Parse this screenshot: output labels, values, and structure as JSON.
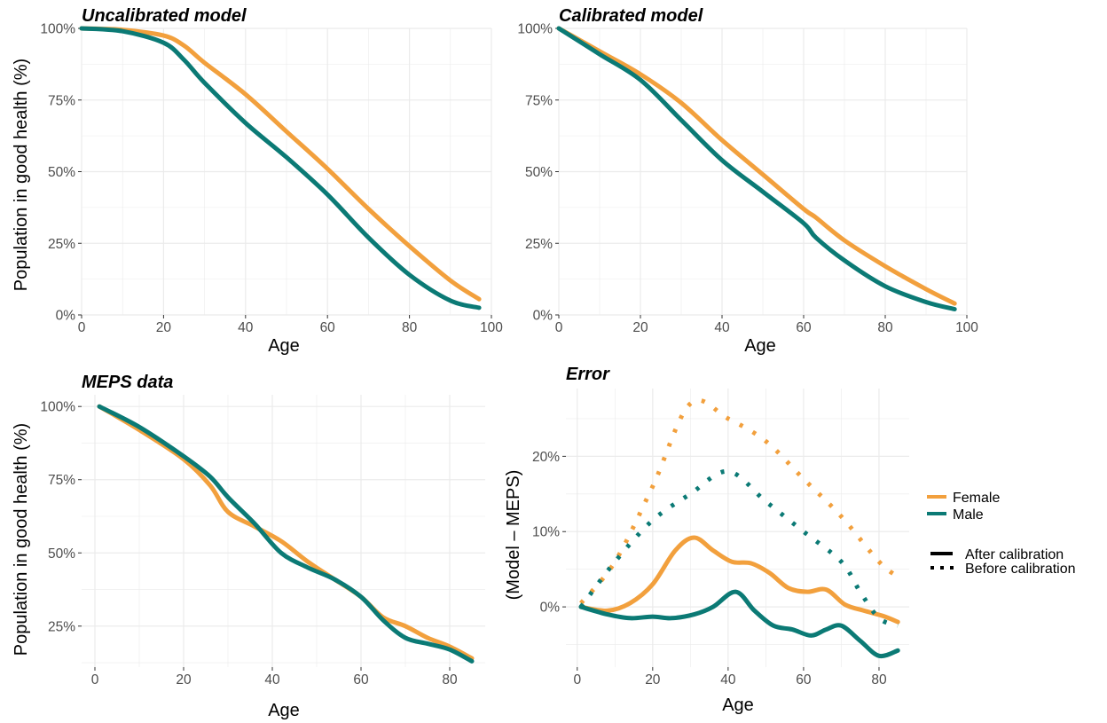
{
  "colors": {
    "female": "#f2a03d",
    "male": "#0b7a75",
    "grid": "#ebebeb",
    "tick": "#4d4d4d"
  },
  "legend": {
    "sex": [
      {
        "label": "Female",
        "color": "#f2a03d"
      },
      {
        "label": "Male",
        "color": "#0b7a75"
      }
    ],
    "linetype": [
      {
        "label": "After calibration",
        "style": "solid"
      },
      {
        "label": "Before calibration",
        "style": "dotted"
      }
    ]
  },
  "chart_data": [
    {
      "type": "line",
      "title": "Uncalibrated model",
      "xlabel": "Age",
      "ylabel": "Population in good health (%)",
      "xlim": [
        0,
        100
      ],
      "ylim": [
        0,
        100
      ],
      "xticks": [
        "0",
        "20",
        "40",
        "60",
        "80",
        "100"
      ],
      "yticks": [
        "0%",
        "25%",
        "50%",
        "75%",
        "100%"
      ],
      "series": [
        {
          "name": "Female",
          "color": "#f2a03d",
          "x": [
            0,
            10,
            20,
            25,
            30,
            40,
            50,
            60,
            70,
            80,
            90,
            97
          ],
          "y": [
            100,
            99.5,
            97.5,
            94,
            88,
            77,
            64,
            51,
            37,
            24,
            12,
            5.5
          ]
        },
        {
          "name": "Male",
          "color": "#0b7a75",
          "x": [
            0,
            10,
            20,
            25,
            30,
            40,
            50,
            60,
            70,
            80,
            90,
            97
          ],
          "y": [
            100,
            99,
            95,
            89,
            81,
            67,
            55,
            42,
            27,
            14,
            5,
            2.5
          ]
        }
      ]
    },
    {
      "type": "line",
      "title": "Calibrated model",
      "xlabel": "Age",
      "ylabel": "",
      "xlim": [
        0,
        100
      ],
      "ylim": [
        0,
        100
      ],
      "xticks": [
        "0",
        "20",
        "40",
        "60",
        "80",
        "100"
      ],
      "yticks": [
        "0%",
        "25%",
        "50%",
        "75%",
        "100%"
      ],
      "series": [
        {
          "name": "Female",
          "color": "#f2a03d",
          "x": [
            0,
            10,
            20,
            30,
            40,
            50,
            60,
            63,
            70,
            80,
            90,
            97
          ],
          "y": [
            100,
            92,
            84,
            74,
            61,
            49,
            37,
            34,
            26,
            17,
            9,
            4
          ]
        },
        {
          "name": "Male",
          "color": "#0b7a75",
          "x": [
            0,
            10,
            20,
            30,
            40,
            50,
            60,
            63,
            70,
            80,
            90,
            97
          ],
          "y": [
            100,
            91,
            82,
            68,
            54,
            43,
            32,
            27,
            19,
            10,
            4.5,
            2
          ]
        }
      ]
    },
    {
      "type": "line",
      "title": "MEPS data",
      "xlabel": "Age",
      "ylabel": "Population in good health (%)",
      "xlim": [
        -3,
        88
      ],
      "ylim": [
        11,
        104
      ],
      "xticks": [
        "0",
        "20",
        "40",
        "60",
        "80"
      ],
      "yticks": [
        "25%",
        "50%",
        "75%",
        "100%"
      ],
      "series": [
        {
          "name": "Female",
          "color": "#f2a03d",
          "x": [
            1,
            10,
            20,
            26,
            30,
            36,
            42,
            48,
            54,
            60,
            65,
            70,
            75,
            80,
            85
          ],
          "y": [
            100,
            92,
            82,
            73,
            64,
            59,
            54,
            47,
            41,
            35,
            28,
            25,
            21,
            18,
            14
          ]
        },
        {
          "name": "Male",
          "color": "#0b7a75",
          "x": [
            1,
            10,
            20,
            26,
            30,
            36,
            42,
            48,
            54,
            60,
            65,
            70,
            75,
            80,
            85
          ],
          "y": [
            100,
            93,
            83,
            76,
            69,
            60,
            50,
            45,
            41,
            35,
            27,
            21,
            19,
            17,
            13
          ]
        }
      ]
    },
    {
      "type": "line",
      "title": "Error",
      "xlabel": "Age",
      "ylabel": "(Model – MEPS)",
      "xlim": [
        -3,
        88
      ],
      "ylim": [
        -8,
        29
      ],
      "xticks": [
        "0",
        "20",
        "40",
        "60",
        "80"
      ],
      "yticks": [
        "0%",
        "10%",
        "20%"
      ],
      "series": [
        {
          "name": "Female",
          "linetype": "After calibration",
          "color": "#f2a03d",
          "dash": "solid",
          "x": [
            1,
            8,
            14,
            20,
            26,
            31,
            36,
            41,
            46,
            51,
            56,
            61,
            66,
            71,
            76,
            81,
            85
          ],
          "y": [
            0,
            -0.5,
            0.5,
            3,
            7.5,
            9.2,
            7.5,
            6,
            5.8,
            4.5,
            2.5,
            2,
            2.3,
            0.3,
            -0.5,
            -1.2,
            -2
          ]
        },
        {
          "name": "Male",
          "linetype": "After calibration",
          "color": "#0b7a75",
          "dash": "solid",
          "x": [
            1,
            8,
            14,
            20,
            25,
            31,
            36,
            42,
            47,
            52,
            57,
            62,
            66,
            70,
            75,
            80,
            85
          ],
          "y": [
            0,
            -1,
            -1.5,
            -1.3,
            -1.5,
            -1,
            0,
            2,
            -0.5,
            -2.5,
            -3,
            -3.8,
            -3,
            -2.5,
            -4.5,
            -6.5,
            -5.8
          ]
        },
        {
          "name": "Female",
          "linetype": "Before calibration",
          "color": "#f2a03d",
          "dash": "dotted",
          "x": [
            1,
            10,
            20,
            30,
            40,
            50,
            60,
            70,
            80,
            85
          ],
          "y": [
            0.5,
            6,
            16,
            27,
            25,
            22,
            17,
            12,
            6,
            4
          ]
        },
        {
          "name": "Male",
          "linetype": "Before calibration",
          "color": "#0b7a75",
          "dash": "dotted",
          "x": [
            1,
            10,
            20,
            30,
            40,
            50,
            60,
            70,
            75,
            80,
            85
          ],
          "y": [
            0,
            6,
            11.5,
            15,
            18,
            14,
            10,
            6,
            2,
            -1.5,
            -2.5
          ]
        }
      ]
    }
  ]
}
